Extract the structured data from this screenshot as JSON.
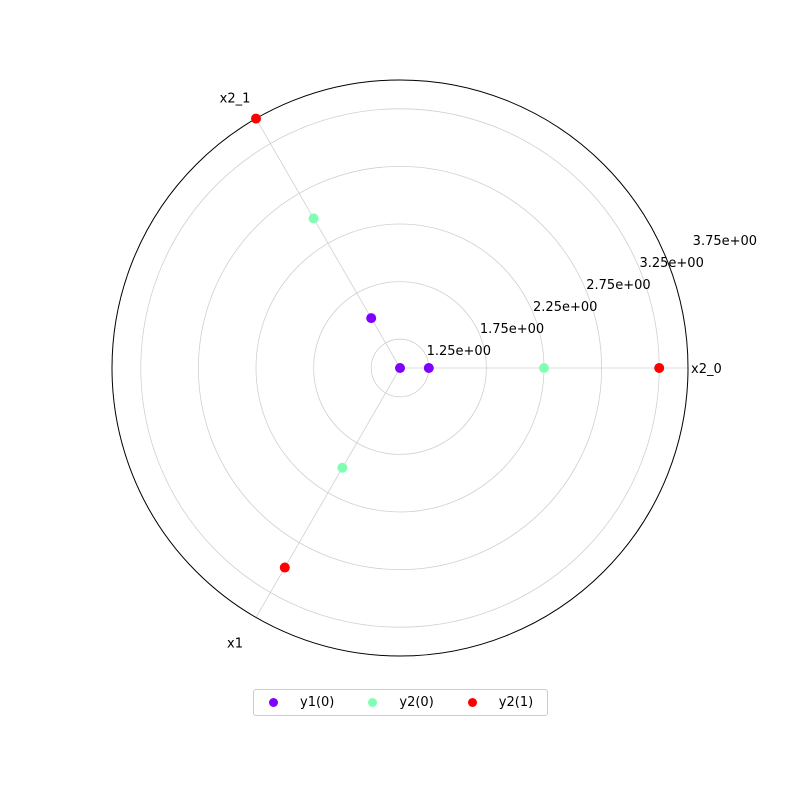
{
  "chart_data": {
    "type": "scatter",
    "projection": "polar",
    "r_ticks": [
      "1.25e+00",
      "1.75e+00",
      "2.25e+00",
      "2.75e+00",
      "3.25e+00",
      "3.75e+00"
    ],
    "r_tick_values": [
      1.25,
      1.75,
      2.25,
      2.75,
      3.25,
      3.75
    ],
    "rlim": [
      1.0,
      3.5
    ],
    "spokes": [
      {
        "label": "x2_0",
        "angle_deg": 0
      },
      {
        "label": "x2_1",
        "angle_deg": 120
      },
      {
        "label": "x1",
        "angle_deg": 240
      }
    ],
    "grid": true,
    "legend_position": "bottom-center",
    "series": [
      {
        "name": "y1(0)",
        "color": "#8000ff",
        "points": [
          {
            "spoke": "x2_0",
            "r": 1.25
          },
          {
            "spoke": "x2_0",
            "r": 1.0
          },
          {
            "spoke": "x2_1",
            "r": 1.5
          }
        ]
      },
      {
        "name": "y2(0)",
        "color": "#80ffb4",
        "points": [
          {
            "spoke": "x2_0",
            "r": 2.25
          },
          {
            "spoke": "x2_1",
            "r": 2.5
          },
          {
            "spoke": "x1",
            "r": 2.0
          }
        ]
      },
      {
        "name": "y2(1)",
        "color": "#ff0000",
        "points": [
          {
            "spoke": "x2_0",
            "r": 3.25
          },
          {
            "spoke": "x2_1",
            "r": 3.5
          },
          {
            "spoke": "x1",
            "r": 3.0
          }
        ]
      }
    ]
  }
}
